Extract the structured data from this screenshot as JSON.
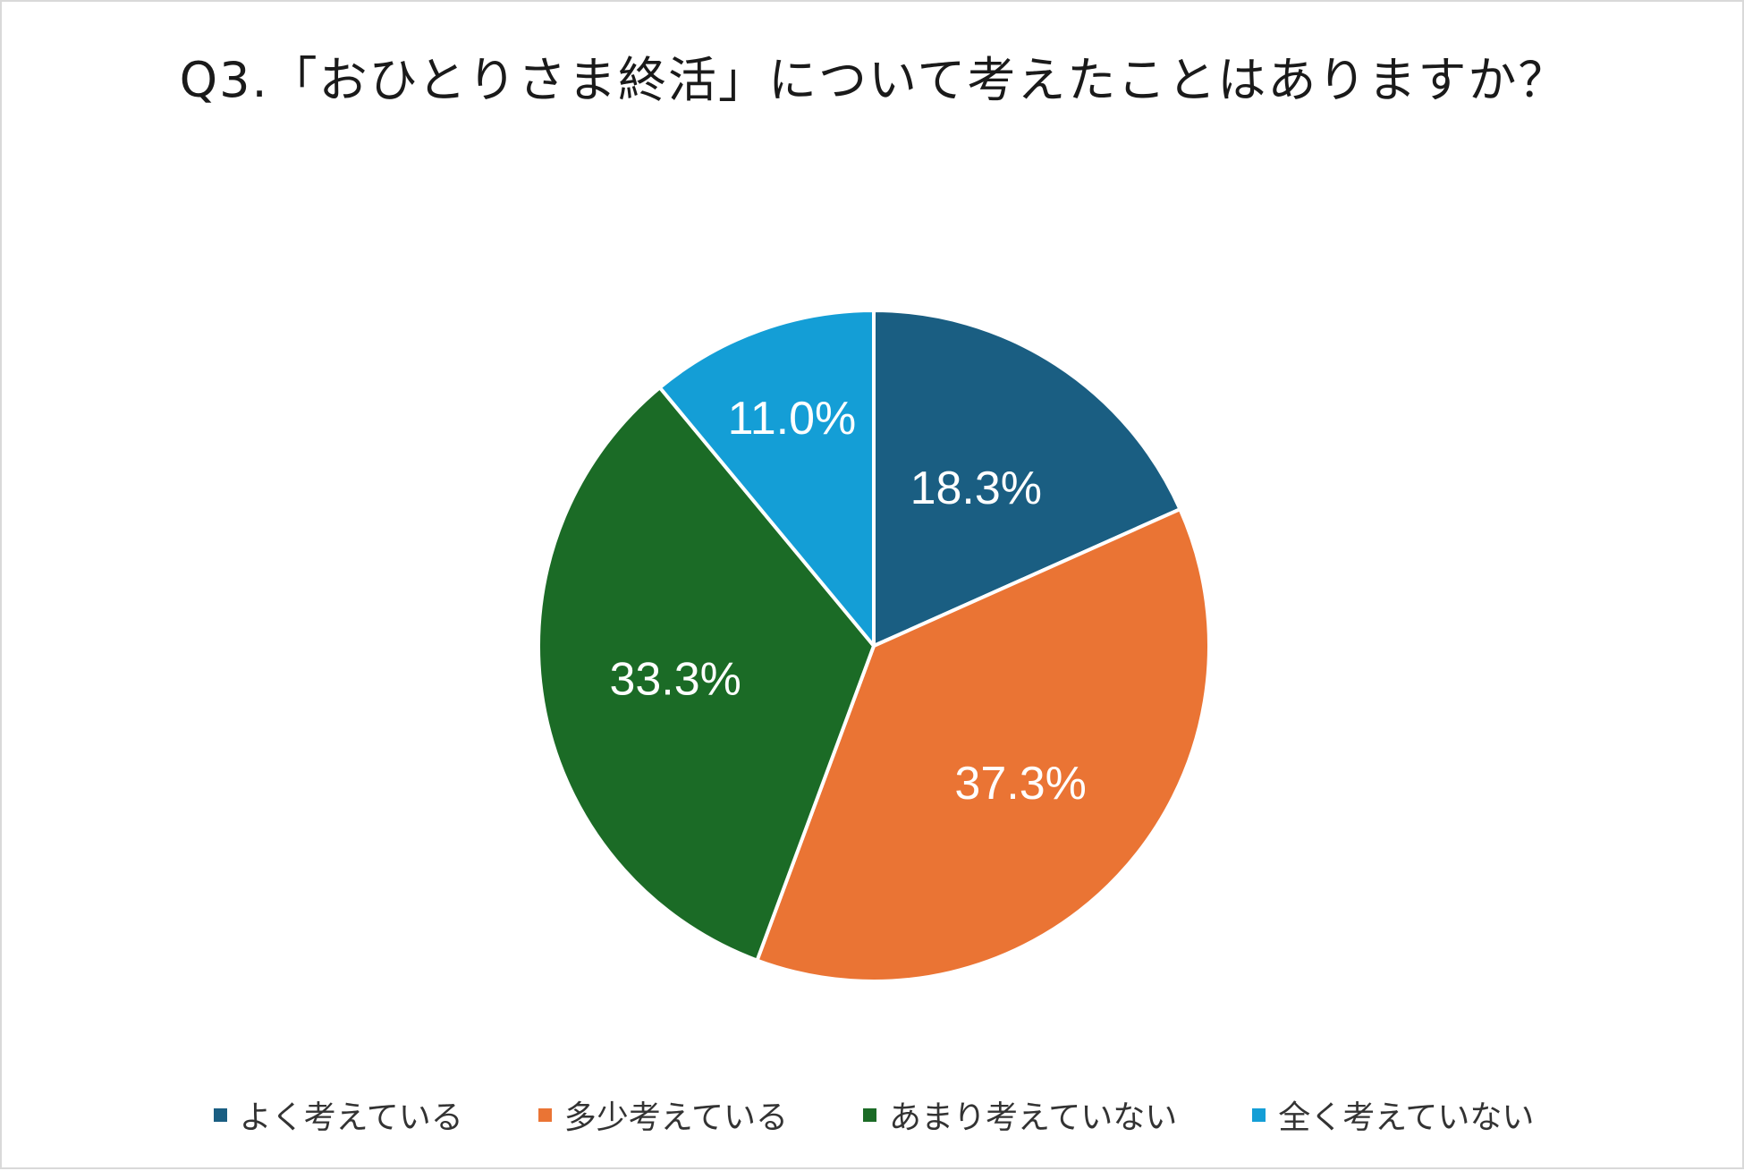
{
  "chart_data": {
    "type": "pie",
    "title": "Q3.「おひとりさま終活」について考えたことはありますか？",
    "categories": [
      "よく考えている",
      "多少考えている",
      "あまり考えていない",
      "全く考えていない"
    ],
    "values": [
      18.3,
      37.3,
      33.3,
      11.0
    ],
    "data_labels": [
      "18.3%",
      "37.3%",
      "33.3%",
      "11.0%"
    ],
    "colors": [
      "#1a5e82",
      "#ea7434",
      "#1b6b26",
      "#149ed6"
    ],
    "start_angle": "12 o'clock",
    "direction": "clockwise",
    "legend_position": "bottom"
  }
}
